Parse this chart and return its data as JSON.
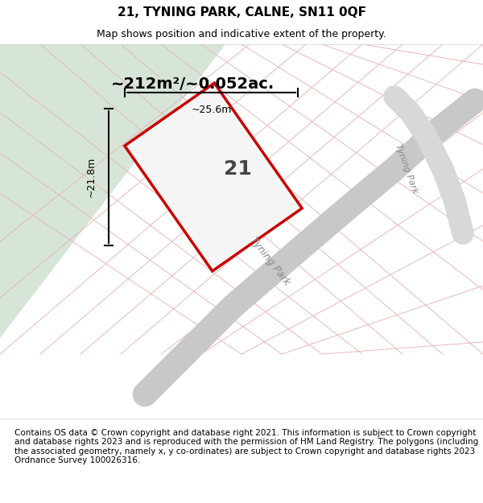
{
  "title_line1": "21, TYNING PARK, CALNE, SN11 0QF",
  "title_line2": "Map shows position and indicative extent of the property.",
  "area_label": "~212m²/~0.052ac.",
  "plot_number": "21",
  "width_label": "~25.6m",
  "height_label": "~21.8m",
  "footer_text": "Contains OS data © Crown copyright and database right 2021. This information is subject to Crown copyright and database rights 2023 and is reproduced with the permission of HM Land Registry. The polygons (including the associated geometry, namely x, y co-ordinates) are subject to Crown copyright and database rights 2023 Ordnance Survey 100026316.",
  "bg_map_color": "#f0f0f0",
  "green_area_color": "#d6e5d8",
  "road_color": "#e8e8e8",
  "plot_fill_color": "#f5f5f5",
  "plot_outline_color": "#cc0000",
  "grid_line_color": "#e8b8b8",
  "street_label_color": "#888888",
  "title_fontsize": 11,
  "subtitle_fontsize": 9,
  "footer_fontsize": 7.5
}
